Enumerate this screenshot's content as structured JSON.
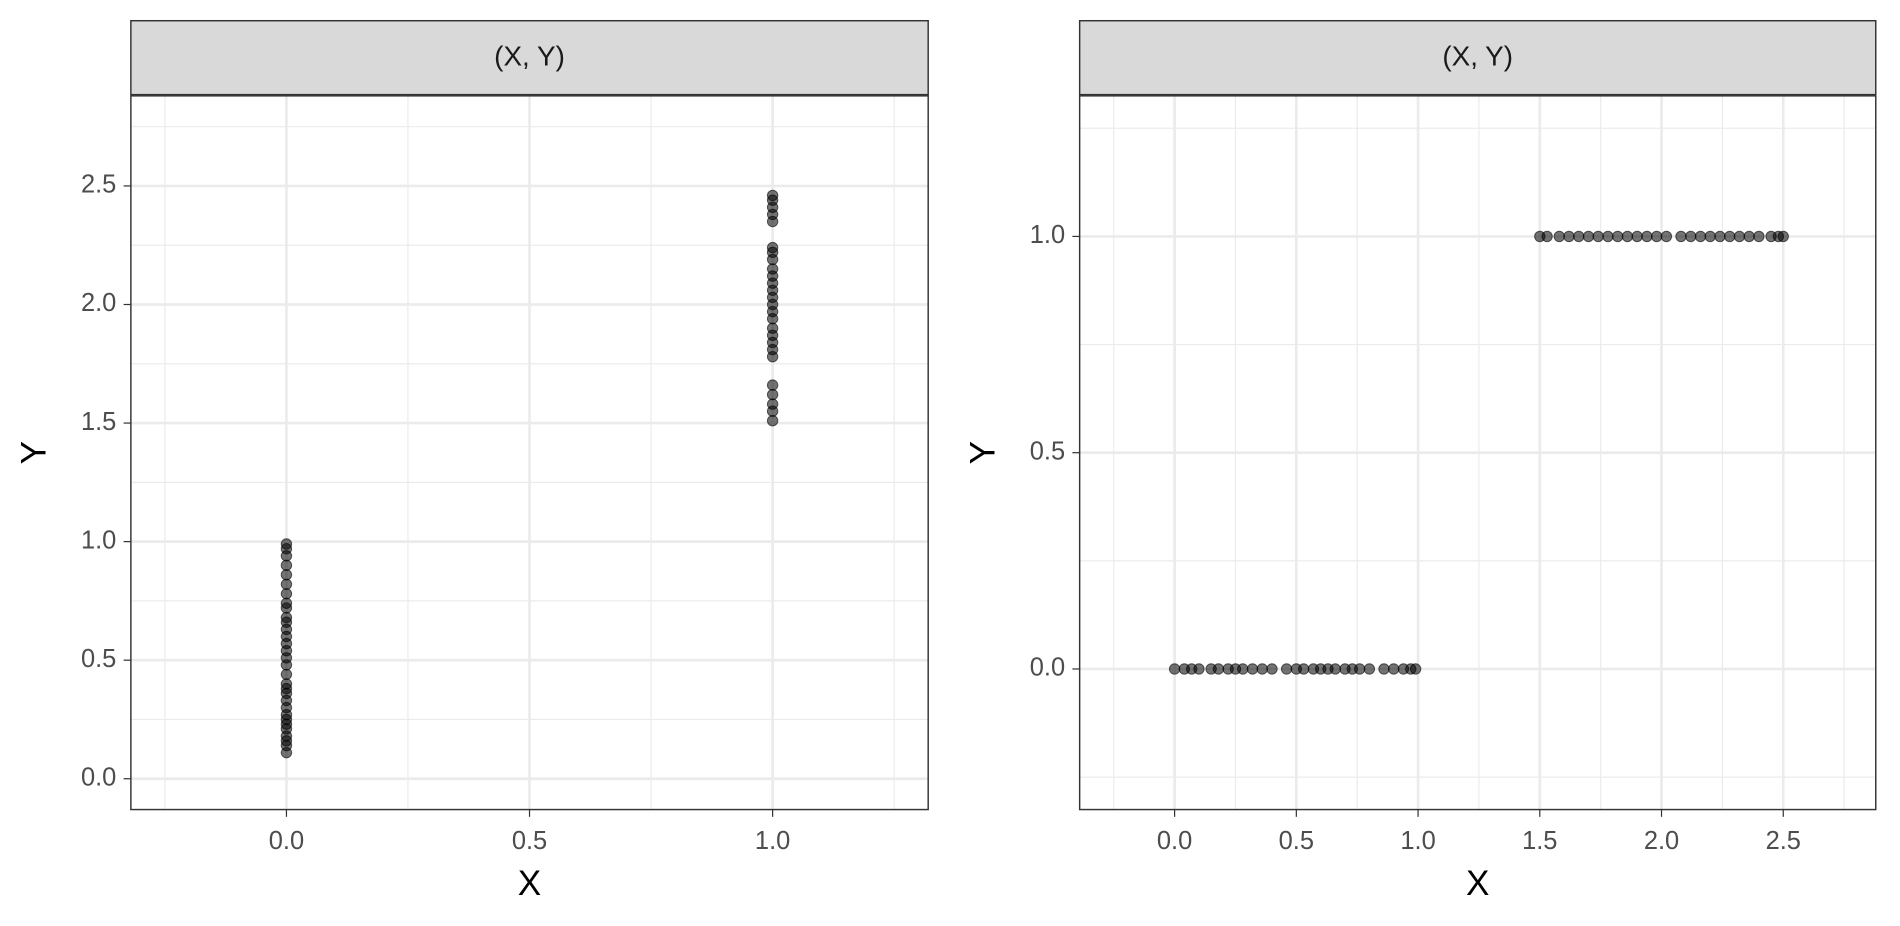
{
  "chart_data": [
    {
      "type": "scatter",
      "strip": "(X, Y)",
      "xlabel": "X",
      "ylabel": "Y",
      "color": "#000000",
      "grid": true,
      "xlim": [
        -0.32,
        1.32
      ],
      "ylim": [
        -0.13,
        2.88
      ],
      "xticks": [
        {
          "value": 0,
          "label": "0.0"
        },
        0.5,
        {
          "value": 1,
          "label": "1.0"
        }
      ],
      "yticks": [
        {
          "value": 0,
          "label": "0.0"
        },
        0.5,
        {
          "value": 1,
          "label": "1.0"
        },
        1.5,
        {
          "value": 2,
          "label": "2.0"
        },
        2.5
      ],
      "minor_xticks": [
        -0.25,
        0.25,
        0.75,
        1.25
      ],
      "minor_yticks": [
        0.25,
        0.75,
        1.25,
        1.75,
        2.25,
        2.75
      ],
      "x": [
        0,
        0,
        0,
        0,
        0,
        0,
        0,
        0,
        0,
        0,
        0,
        0,
        0,
        0,
        0,
        0,
        0,
        0,
        0,
        0,
        0,
        0,
        0,
        0,
        0,
        0,
        0,
        0,
        0,
        0,
        0,
        1,
        1,
        1,
        1,
        1,
        1,
        1,
        1,
        1,
        1,
        1,
        1,
        1,
        1,
        1,
        1,
        1,
        1,
        1,
        1,
        1,
        1,
        1,
        1,
        1,
        1
      ],
      "y": [
        0.11,
        0.14,
        0.16,
        0.18,
        0.21,
        0.23,
        0.25,
        0.27,
        0.3,
        0.33,
        0.36,
        0.38,
        0.4,
        0.44,
        0.48,
        0.51,
        0.54,
        0.57,
        0.6,
        0.63,
        0.66,
        0.68,
        0.72,
        0.74,
        0.78,
        0.82,
        0.86,
        0.9,
        0.94,
        0.97,
        0.99,
        1.51,
        1.55,
        1.58,
        1.62,
        1.66,
        1.78,
        1.81,
        1.84,
        1.87,
        1.9,
        1.94,
        1.97,
        2.0,
        2.03,
        2.06,
        2.09,
        2.12,
        2.15,
        2.19,
        2.22,
        2.24,
        2.35,
        2.38,
        2.41,
        2.44,
        2.46
      ]
    },
    {
      "type": "scatter",
      "strip": "(X, Y)",
      "xlabel": "X",
      "ylabel": "Y",
      "color": "#000000",
      "grid": true,
      "xlim": [
        -0.39,
        2.88
      ],
      "ylim": [
        -0.325,
        1.325
      ],
      "xticks": [
        {
          "value": 0,
          "label": "0.0"
        },
        0.5,
        {
          "value": 1,
          "label": "1.0"
        },
        1.5,
        {
          "value": 2,
          "label": "2.0"
        },
        2.5
      ],
      "yticks": [
        {
          "value": 0,
          "label": "0.0"
        },
        0.5,
        {
          "value": 1,
          "label": "1.0"
        }
      ],
      "minor_xticks": [
        -0.25,
        0.25,
        0.75,
        1.25,
        1.75,
        2.25,
        2.75
      ],
      "minor_yticks": [
        -0.25,
        0.25,
        0.75,
        1.25
      ],
      "x": [
        0.0,
        0.04,
        0.07,
        0.1,
        0.15,
        0.18,
        0.22,
        0.25,
        0.28,
        0.32,
        0.36,
        0.4,
        0.46,
        0.5,
        0.53,
        0.57,
        0.6,
        0.63,
        0.66,
        0.7,
        0.73,
        0.76,
        0.8,
        0.86,
        0.9,
        0.94,
        0.97,
        0.99,
        1.5,
        1.53,
        1.58,
        1.62,
        1.66,
        1.7,
        1.74,
        1.78,
        1.82,
        1.86,
        1.9,
        1.94,
        1.98,
        2.02,
        2.08,
        2.12,
        2.16,
        2.2,
        2.24,
        2.28,
        2.32,
        2.36,
        2.4,
        2.45,
        2.48,
        2.5
      ],
      "y": [
        0,
        0,
        0,
        0,
        0,
        0,
        0,
        0,
        0,
        0,
        0,
        0,
        0,
        0,
        0,
        0,
        0,
        0,
        0,
        0,
        0,
        0,
        0,
        0,
        0,
        0,
        0,
        0,
        1,
        1,
        1,
        1,
        1,
        1,
        1,
        1,
        1,
        1,
        1,
        1,
        1,
        1,
        1,
        1,
        1,
        1,
        1,
        1,
        1,
        1,
        1,
        1,
        1,
        1
      ]
    }
  ]
}
